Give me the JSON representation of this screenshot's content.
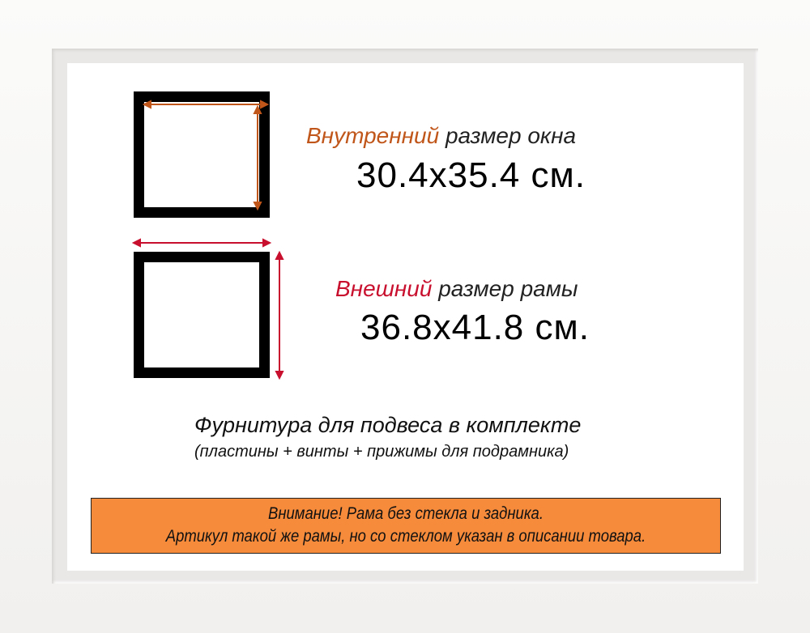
{
  "inner": {
    "label_accent": "Внутренний",
    "label_rest": " размер окна",
    "value": "30.4x35.4 см.",
    "color": "#c0561a"
  },
  "outer": {
    "label_accent": "Внешний",
    "label_rest": " размер рамы",
    "value": "36.8x41.8 см.",
    "color": "#c8102e"
  },
  "hardware": {
    "title": "Фурнитура для подвеса в комплекте",
    "details": "(пластины + винты + прижимы для подрамника)"
  },
  "notice": {
    "line1": "Внимание! Рама без стекла и задника.",
    "line2": "Артикул такой же рамы, но со стеклом указан в описании товара.",
    "background": "#f68b3c"
  },
  "frame_color": "#ffffff"
}
